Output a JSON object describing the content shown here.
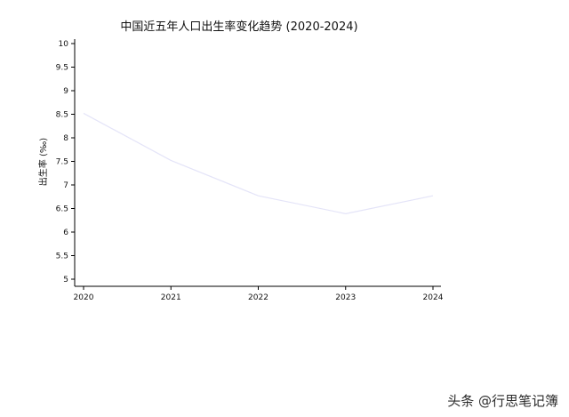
{
  "chart_data": {
    "type": "line",
    "title": "中国近五年人口出生率变化趋势 (2020-2024)",
    "xlabel": "",
    "ylabel": "出生率 (‰)",
    "x": [
      "2020",
      "2021",
      "2022",
      "2023",
      "2024"
    ],
    "series": [
      {
        "values": [
          8.52,
          7.52,
          6.77,
          6.39,
          6.77
        ],
        "color": "#e4e4f8"
      }
    ],
    "ylim": [
      5,
      10
    ],
    "yticks": [
      "5",
      "5.5",
      "6",
      "6.5",
      "7",
      "7.5",
      "8",
      "8.5",
      "9",
      "9.5",
      "10"
    ],
    "grid": false,
    "legend": "none"
  },
  "watermark": "头条 @行思笔记簿"
}
